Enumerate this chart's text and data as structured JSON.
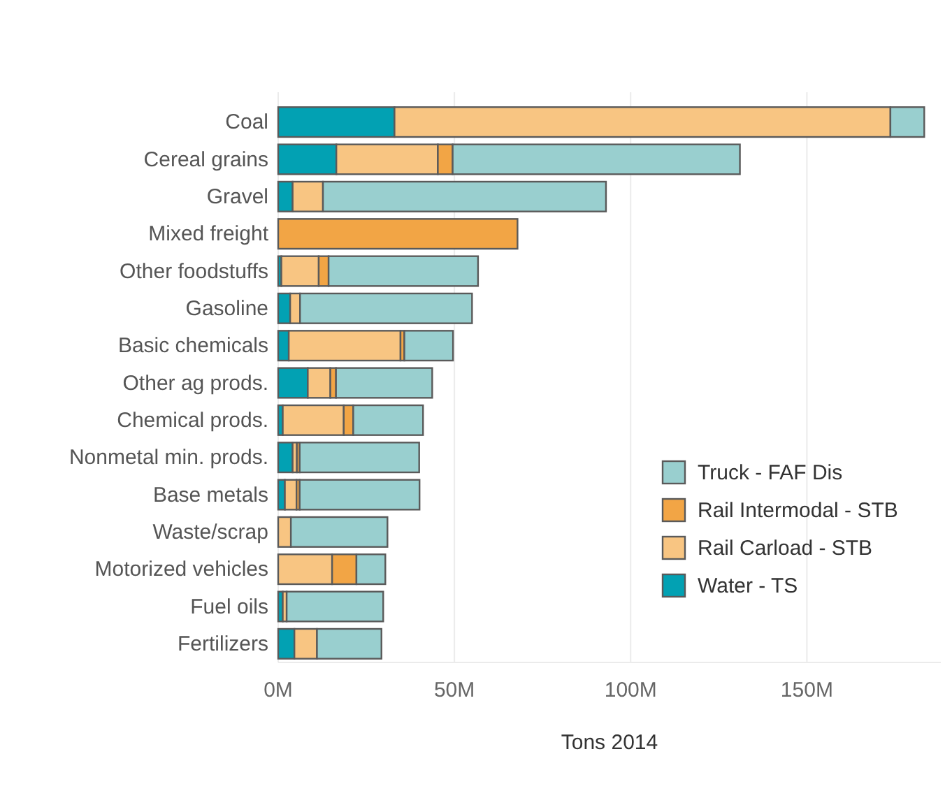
{
  "chart_data": {
    "type": "bar",
    "orientation": "horizontal",
    "stacked": true,
    "xlabel": "Tons 2014",
    "categories": [
      "Coal",
      "Cereal grains",
      "Gravel",
      "Mixed freight",
      "Other foodstuffs",
      "Gasoline",
      "Basic chemicals",
      "Other ag prods.",
      "Chemical prods.",
      "Nonmetal min. prods.",
      "Base metals",
      "Waste/scrap",
      "Motorized vehicles",
      "Fuel oils",
      "Fertilizers"
    ],
    "series": [
      {
        "name": "Water - TS",
        "color": "#02a1b3",
        "values": [
          33.0,
          16.5,
          4.1,
          null,
          0.9,
          3.4,
          3.0,
          8.4,
          1.3,
          4.1,
          1.9,
          null,
          null,
          1.3,
          4.6
        ]
      },
      {
        "name": "Rail Carload - STB",
        "color": "#f8c582",
        "values": [
          140.7,
          28.8,
          8.6,
          null,
          10.6,
          2.8,
          31.7,
          6.4,
          17.3,
          1.2,
          3.3,
          3.6,
          15.3,
          1.1,
          6.4
        ]
      },
      {
        "name": "Rail Intermodal - STB",
        "color": "#f2a545",
        "values": [
          null,
          4.2,
          null,
          67.9,
          2.8,
          null,
          1.1,
          1.6,
          2.7,
          0.8,
          0.9,
          null,
          6.9,
          null,
          null
        ]
      },
      {
        "name": "Truck - FAF Dis",
        "color": "#99cfcf",
        "values": [
          9.6,
          81.5,
          80.3,
          null,
          42.4,
          48.8,
          13.8,
          27.3,
          19.8,
          33.9,
          34.0,
          27.4,
          8.2,
          27.4,
          18.3
        ]
      }
    ],
    "xlim": [
      0,
      188
    ],
    "xticks": [
      {
        "value": 0,
        "label": "0M"
      },
      {
        "value": 50,
        "label": "50M"
      },
      {
        "value": 100,
        "label": "100M"
      },
      {
        "value": 150,
        "label": "150M"
      }
    ],
    "grid": "x",
    "legend": "bottom right"
  }
}
